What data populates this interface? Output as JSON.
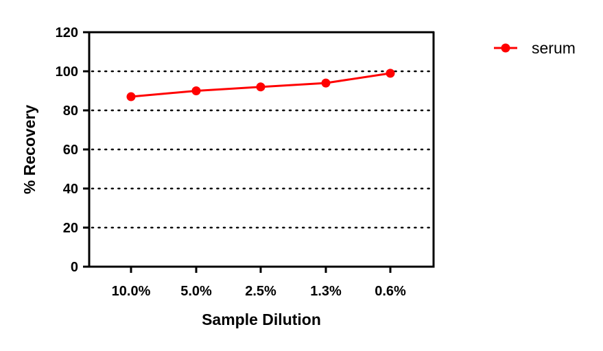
{
  "chart_data": {
    "type": "line",
    "title": "",
    "xlabel": "Sample Dilution",
    "ylabel": "% Recovery",
    "categories": [
      "10.0%",
      "5.0%",
      "2.5%",
      "1.3%",
      "0.6%"
    ],
    "series": [
      {
        "name": "serum",
        "values": [
          87,
          90,
          92,
          94,
          99
        ],
        "color": "#ff0000"
      }
    ],
    "ylim": [
      0,
      120
    ],
    "yticks": [
      0,
      20,
      40,
      60,
      80,
      100,
      120
    ],
    "ytick_labels": [
      "0",
      "20",
      "40",
      "60",
      "80",
      "100",
      "120"
    ],
    "grid": "horizontal dotted",
    "legend_position": "top-right, outside plot"
  }
}
